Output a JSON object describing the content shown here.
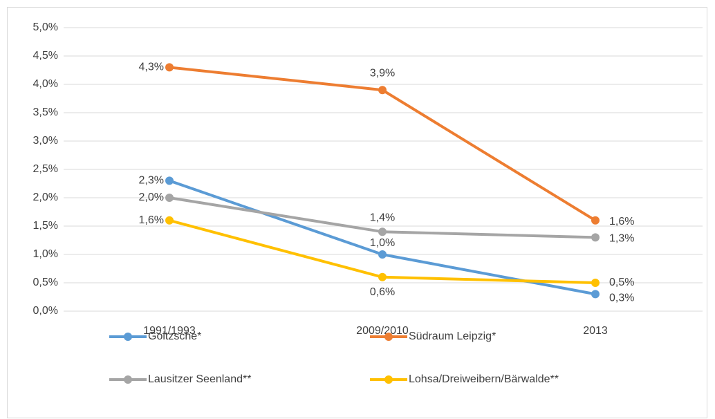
{
  "chart_data": {
    "type": "line",
    "categories": [
      "1991/1993",
      "2009/2010",
      "2013"
    ],
    "series": [
      {
        "name": "Goitzsche*",
        "color": "#5b9bd5",
        "values": [
          2.3,
          1.0,
          0.3
        ],
        "value_labels": [
          "2,3%",
          "1,0%",
          "0,3%"
        ]
      },
      {
        "name": "Südraum Leipzig*",
        "color": "#ed7d31",
        "values": [
          4.3,
          3.9,
          1.6
        ],
        "value_labels": [
          "4,3%",
          "3,9%",
          "1,6%"
        ]
      },
      {
        "name": "Lausitzer Seenland**",
        "color": "#a5a5a5",
        "values": [
          2.0,
          1.4,
          1.3
        ],
        "value_labels": [
          "2,0%",
          "1,4%",
          "1,3%"
        ]
      },
      {
        "name": "Lohsa/Dreiweibern/Bärwalde**",
        "color": "#ffc000",
        "values": [
          1.6,
          0.6,
          0.5
        ],
        "value_labels": [
          "1,6%",
          "0,6%",
          "0,5%"
        ]
      }
    ],
    "ylim": [
      0,
      5
    ],
    "yticks": [
      {
        "value": 0,
        "label": "0,0%"
      },
      {
        "value": 0.5,
        "label": "0,5%"
      },
      {
        "value": 1,
        "label": "1,0%"
      },
      {
        "value": 1.5,
        "label": "1,5%"
      },
      {
        "value": 2,
        "label": "2,0%"
      },
      {
        "value": 2.5,
        "label": "2,5%"
      },
      {
        "value": 3,
        "label": "3,0%"
      },
      {
        "value": 3.5,
        "label": "3,5%"
      },
      {
        "value": 4,
        "label": "4,0%"
      },
      {
        "value": 4.5,
        "label": "4,5%"
      },
      {
        "value": 5,
        "label": "5,0%"
      }
    ],
    "grid": true,
    "legend": "bottom"
  }
}
